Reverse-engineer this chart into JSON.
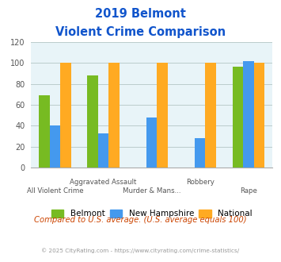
{
  "title_line1": "2019 Belmont",
  "title_line2": "Violent Crime Comparison",
  "categories_upper": [
    "",
    "Aggravated Assault",
    "",
    "Robbery",
    ""
  ],
  "categories_lower": [
    "All Violent Crime",
    "",
    "Murder & Mans...",
    "",
    "Rape"
  ],
  "belmont": [
    69,
    88,
    0,
    0,
    96
  ],
  "new_hampshire": [
    40,
    33,
    48,
    28,
    102
  ],
  "national": [
    100,
    100,
    100,
    100,
    100
  ],
  "color_belmont": "#77bb22",
  "color_nh": "#4499ee",
  "color_national": "#ffaa22",
  "ylim": [
    0,
    120
  ],
  "yticks": [
    0,
    20,
    40,
    60,
    80,
    100,
    120
  ],
  "legend_labels": [
    "Belmont",
    "New Hampshire",
    "National"
  ],
  "footnote1": "Compared to U.S. average. (U.S. average equals 100)",
  "footnote2": "© 2025 CityRating.com - https://www.cityrating.com/crime-statistics/",
  "title_color": "#1155cc",
  "footnote1_color": "#cc4400",
  "footnote2_color": "#999999",
  "bg_color": "#e8f4f8",
  "grid_color": "#bbcccc",
  "bar_width": 0.22,
  "n_categories": 5
}
